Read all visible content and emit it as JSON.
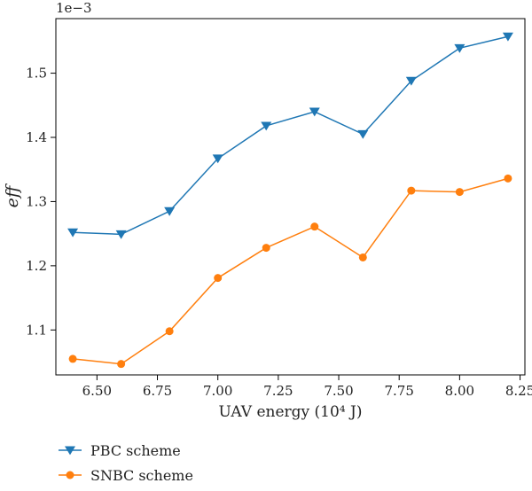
{
  "chart_data": {
    "type": "line",
    "xlabel": "UAV energy (10⁴ J)",
    "ylabel": "eff",
    "y_offset_label": "1e−3",
    "x": [
      6.4,
      6.6,
      6.8,
      7.0,
      7.2,
      7.4,
      7.6,
      7.8,
      8.0,
      8.2
    ],
    "xlim": [
      6.33,
      8.27
    ],
    "ylim": [
      1.03,
      1.585
    ],
    "xticks": [
      6.5,
      6.75,
      7.0,
      7.25,
      7.5,
      7.75,
      8.0,
      8.25
    ],
    "xtick_labels": [
      "6.50",
      "6.75",
      "7.00",
      "7.25",
      "7.50",
      "7.75",
      "8.00",
      "8.25"
    ],
    "yticks": [
      1.1,
      1.2,
      1.3,
      1.4,
      1.5
    ],
    "ytick_labels": [
      "1.1",
      "1.2",
      "1.3",
      "1.4",
      "1.5"
    ],
    "grid": false,
    "legend_position": "bottom-left, below plot",
    "series": [
      {
        "name": "PBC scheme",
        "color": "#1f77b4",
        "marker": "triangle-down",
        "values": [
          1.252,
          1.249,
          1.285,
          1.367,
          1.418,
          1.44,
          1.405,
          1.488,
          1.539,
          1.557
        ]
      },
      {
        "name": "SNBC scheme",
        "color": "#ff7f0e",
        "marker": "circle",
        "values": [
          1.055,
          1.047,
          1.098,
          1.181,
          1.228,
          1.261,
          1.213,
          1.317,
          1.315,
          1.336
        ]
      }
    ]
  }
}
